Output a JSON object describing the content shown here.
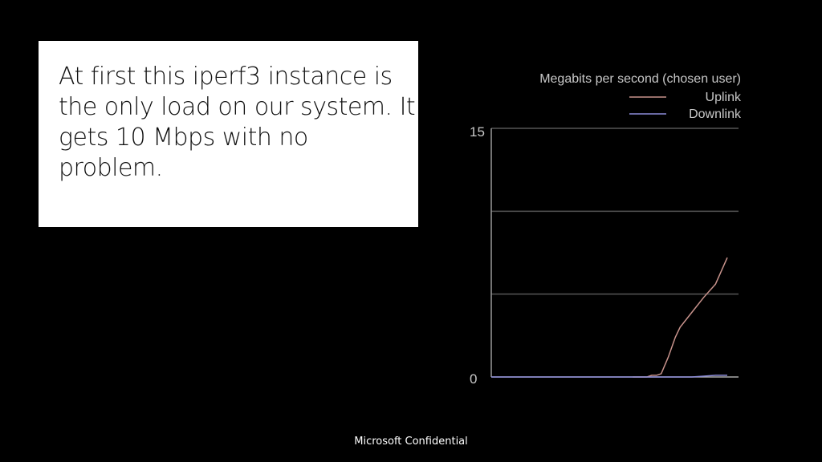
{
  "slide": {
    "text": "At first this iperf3 instance is the only load on our system. It gets 10 Mbps with no problem.",
    "footer": "Microsoft Confidential"
  },
  "chart_data": {
    "type": "line",
    "title": "Megabits per second (chosen user)",
    "ylim": [
      0,
      15
    ],
    "yticks": [
      "0",
      "15"
    ],
    "grid": true,
    "legend": "top-right",
    "colors": {
      "Uplink": "#c8938c",
      "Downlink": "#8c8cd8",
      "background": "#000000"
    },
    "x": [
      0,
      10,
      20,
      30,
      40,
      50,
      60,
      66,
      68,
      70,
      72,
      75,
      78,
      80,
      85,
      90,
      95,
      100
    ],
    "series": [
      {
        "name": "Uplink",
        "values": [
          null,
          null,
          null,
          null,
          null,
          null,
          0,
          0,
          0.1,
          0.1,
          0.2,
          1.2,
          2.4,
          3.0,
          3.9,
          4.8,
          5.6,
          7.2
        ]
      },
      {
        "name": "Downlink",
        "values": [
          0,
          0,
          0,
          0,
          0,
          0,
          0,
          0,
          0,
          0,
          0,
          0,
          0,
          0,
          0,
          0.05,
          0.1,
          0.1
        ]
      }
    ]
  }
}
